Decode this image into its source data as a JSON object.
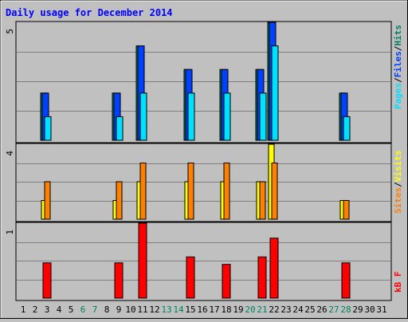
{
  "title": "Daily usage for December 2014",
  "chart_data": [
    {
      "type": "bar",
      "panel": "pages-files-hits",
      "ymax_label": "5",
      "ylim": [
        0,
        5
      ],
      "categories": [
        "1",
        "2",
        "3",
        "4",
        "5",
        "6",
        "7",
        "8",
        "9",
        "10",
        "11",
        "12",
        "13",
        "14",
        "15",
        "16",
        "17",
        "18",
        "19",
        "20",
        "21",
        "22",
        "23",
        "24",
        "25",
        "26",
        "27",
        "28",
        "29",
        "30",
        "31"
      ],
      "weekend_days": [
        "6",
        "7",
        "13",
        "14",
        "20",
        "21",
        "27",
        "28"
      ],
      "series": [
        {
          "name": "Hits",
          "color": "#00805c",
          "values": [
            0,
            0,
            2,
            0,
            0,
            0,
            0,
            0,
            2,
            0,
            4,
            0,
            0,
            0,
            3,
            0,
            0,
            3,
            0,
            0,
            3,
            5,
            0,
            0,
            0,
            0,
            0,
            2,
            0,
            0,
            0
          ]
        },
        {
          "name": "Files",
          "color": "#0040ff",
          "values": [
            0,
            0,
            2,
            0,
            0,
            0,
            0,
            0,
            2,
            0,
            4,
            0,
            0,
            0,
            3,
            0,
            0,
            3,
            0,
            0,
            3,
            5,
            0,
            0,
            0,
            0,
            0,
            2,
            0,
            0,
            0
          ]
        },
        {
          "name": "Pages",
          "color": "#00e0ff",
          "values": [
            0,
            0,
            1,
            0,
            0,
            0,
            0,
            0,
            1,
            0,
            2,
            0,
            0,
            0,
            2,
            0,
            0,
            2,
            0,
            0,
            2,
            4,
            0,
            0,
            0,
            0,
            0,
            1,
            0,
            0,
            0
          ]
        }
      ],
      "legend": [
        {
          "text": "Pages",
          "color": "#00e0ff"
        },
        {
          "text": "/",
          "color": "#000000"
        },
        {
          "text": "Files",
          "color": "#0040ff"
        },
        {
          "text": "/",
          "color": "#000000"
        },
        {
          "text": "Hits",
          "color": "#00805c"
        }
      ]
    },
    {
      "type": "bar",
      "panel": "visits-sites",
      "ymax_label": "4",
      "ylim": [
        0,
        4
      ],
      "series": [
        {
          "name": "Visits",
          "color": "#ffff00",
          "values": [
            0,
            0,
            1,
            0,
            0,
            0,
            0,
            0,
            1,
            0,
            2,
            0,
            0,
            0,
            2,
            0,
            0,
            2,
            0,
            0,
            2,
            4,
            0,
            0,
            0,
            0,
            0,
            1,
            0,
            0,
            0
          ]
        },
        {
          "name": "Sites",
          "color": "#ff8000",
          "values": [
            0,
            0,
            2,
            0,
            0,
            0,
            0,
            0,
            2,
            0,
            3,
            0,
            0,
            0,
            3,
            0,
            0,
            3,
            0,
            0,
            2,
            3,
            0,
            0,
            0,
            0,
            0,
            1,
            0,
            0,
            0
          ]
        }
      ],
      "legend": [
        {
          "text": "Sites",
          "color": "#ff8000"
        },
        {
          "text": "/",
          "color": "#000000"
        },
        {
          "text": "Visits",
          "color": "#ffff00"
        }
      ]
    },
    {
      "type": "bar",
      "panel": "kbytes",
      "ymax_label": "1",
      "ylim": [
        0,
        1
      ],
      "series": [
        {
          "name": "kB F",
          "color": "#ff0000",
          "values": [
            0,
            0,
            0.47,
            0,
            0,
            0,
            0,
            0,
            0.47,
            0,
            1.0,
            0,
            0,
            0,
            0.55,
            0,
            0,
            0.45,
            0,
            0,
            0.55,
            0.8,
            0,
            0,
            0,
            0,
            0,
            0.47,
            0,
            0,
            0
          ]
        }
      ],
      "legend": [
        {
          "text": "kB F",
          "color": "#ff0000"
        }
      ]
    }
  ]
}
